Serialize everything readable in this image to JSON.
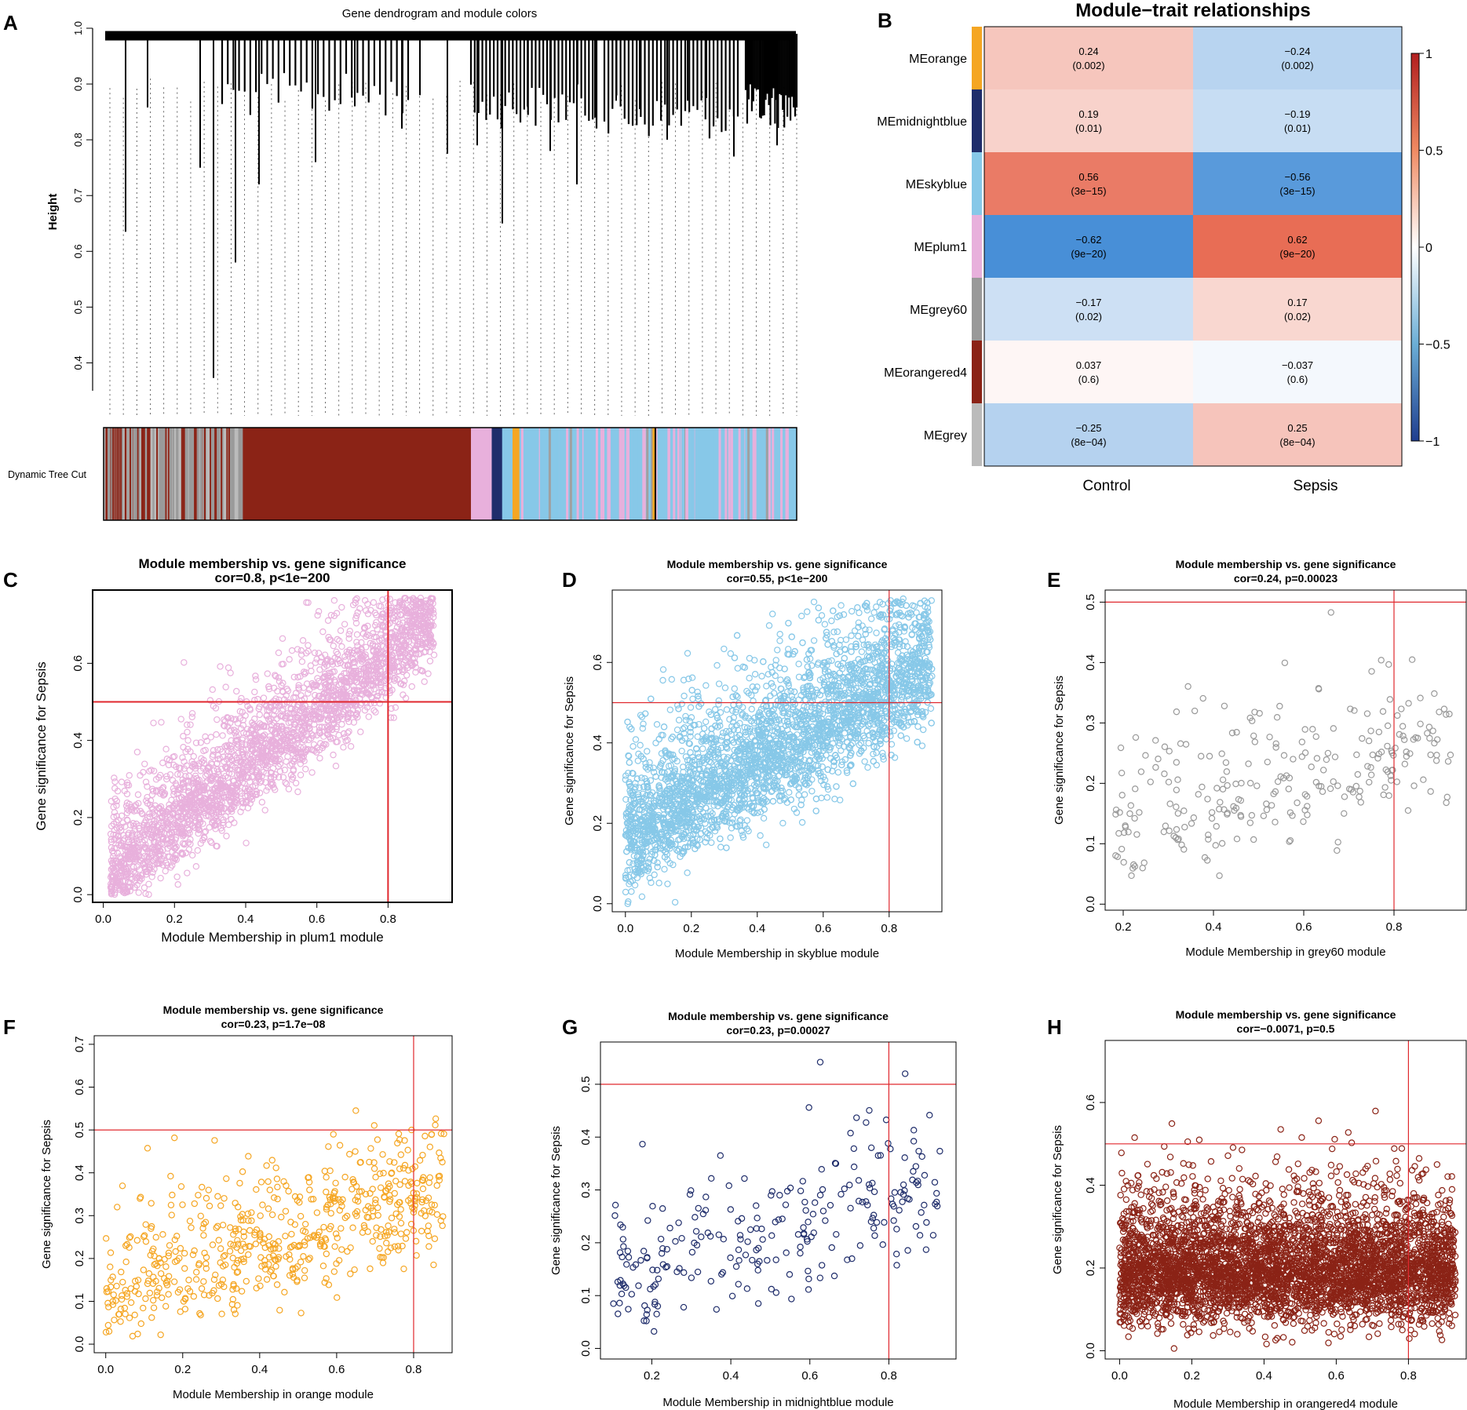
{
  "panel_letters": [
    "A",
    "B",
    "C",
    "D",
    "E",
    "F",
    "G",
    "H"
  ],
  "colors": {
    "orange": "#f5a623",
    "midnightblue": "#1f2d6b",
    "skyblue": "#87c8e8",
    "plum1": "#e8b0dc",
    "grey60": "#999999",
    "orangered4": "#8b2316",
    "grey": "#bbbbbb",
    "red_line": "#e0282e",
    "heat_pos": "#e4553a",
    "heat_neg": "#2a7dd1",
    "heat_mid": "#ffffff"
  },
  "chart_data": [
    {
      "panel": "A",
      "type": "dendrogram",
      "title": "Gene dendrogram and module colors",
      "ylabel": "Height",
      "ylim": [
        0.35,
        1.0
      ],
      "yticks": [
        "0.4",
        "0.5",
        "0.6",
        "0.7",
        "0.8",
        "0.9",
        "1.0"
      ],
      "color_bar_label": "Dynamic Tree Cut",
      "color_bar_segments": [
        {
          "module": "grey",
          "from": 0.0,
          "to": 0.2
        },
        {
          "module": "orangered4",
          "from": 0.2,
          "to": 0.53
        },
        {
          "module": "plum1",
          "from": 0.53,
          "to": 0.56
        },
        {
          "module": "midnightblue",
          "from": 0.56,
          "to": 0.575
        },
        {
          "module": "orange",
          "from": 0.59,
          "to": 0.6
        },
        {
          "module": "skyblue",
          "from": 0.6,
          "to": 1.0
        }
      ]
    },
    {
      "panel": "B",
      "type": "heatmap",
      "title": "Module−trait relationships",
      "columns": [
        "Control",
        "Sepsis"
      ],
      "rows": [
        "MEorange",
        "MEmidnightblue",
        "MEskyblue",
        "MEplum1",
        "MEgrey60",
        "MEorangered4",
        "MEgrey"
      ],
      "row_colors": [
        "orange",
        "midnightblue",
        "skyblue",
        "plum1",
        "grey60",
        "orangered4",
        "grey"
      ],
      "values": [
        [
          0.24,
          -0.24
        ],
        [
          0.19,
          -0.19
        ],
        [
          0.56,
          -0.56
        ],
        [
          -0.62,
          0.62
        ],
        [
          -0.17,
          0.17
        ],
        [
          0.037,
          -0.037
        ],
        [
          -0.25,
          0.25
        ]
      ],
      "value_labels": [
        [
          "0.24",
          "−0.24"
        ],
        [
          "0.19",
          "−0.19"
        ],
        [
          "0.56",
          "−0.56"
        ],
        [
          "−0.62",
          "0.62"
        ],
        [
          "−0.17",
          "0.17"
        ],
        [
          "0.037",
          "−0.037"
        ],
        [
          "−0.25",
          "0.25"
        ]
      ],
      "pvalues": [
        [
          "(0.002)",
          "(0.002)"
        ],
        [
          "(0.01)",
          "(0.01)"
        ],
        [
          "(3e−15)",
          "(3e−15)"
        ],
        [
          "(9e−20)",
          "(9e−20)"
        ],
        [
          "(0.02)",
          "(0.02)"
        ],
        [
          "(0.6)",
          "(0.6)"
        ],
        [
          "(8e−04)",
          "(8e−04)"
        ]
      ],
      "legend_range": [
        -1,
        1
      ],
      "legend_ticks": [
        "1",
        "0.5",
        "0",
        "−0.5",
        "−1"
      ]
    },
    {
      "panel": "C",
      "type": "scatter",
      "title": "Module membership vs. gene significance",
      "subtitle": "cor=0.8, p<1e−200",
      "xlabel": "Module Membership in plum1 module",
      "ylabel": "Gene significance for  Sepsis",
      "xlim": [
        -0.03,
        0.98
      ],
      "ylim": [
        -0.02,
        0.79
      ],
      "xticks": [
        0.0,
        0.2,
        0.4,
        0.6,
        0.8
      ],
      "yticks": [
        0.0,
        0.2,
        0.4,
        0.6
      ],
      "hline": 0.5,
      "vline": 0.8,
      "color": "plum1",
      "n_points": 2600,
      "trend": {
        "intercept": -0.02,
        "slope": 0.72,
        "sd": 0.12,
        "x_range": [
          0.02,
          0.93
        ]
      }
    },
    {
      "panel": "D",
      "type": "scatter",
      "title": "Module membership vs. gene significance",
      "subtitle": "cor=0.55, p<1e−200",
      "xlabel": "Module Membership in skyblue module",
      "ylabel": "Gene significance for  Sepsis",
      "xlim": [
        -0.04,
        0.96
      ],
      "ylim": [
        -0.02,
        0.78
      ],
      "xticks": [
        0.0,
        0.2,
        0.4,
        0.6,
        0.8
      ],
      "yticks": [
        0.0,
        0.2,
        0.4,
        0.6
      ],
      "hline": 0.5,
      "vline": 0.8,
      "color": "skyblue",
      "n_points": 3800,
      "trend": {
        "intercept": 0.1,
        "slope": 0.45,
        "sd": 0.14,
        "x_range": [
          0.0,
          0.93
        ]
      }
    },
    {
      "panel": "E",
      "type": "scatter",
      "title": "Module membership vs. gene significance",
      "subtitle": "cor=0.24, p=0.00023",
      "xlabel": "Module Membership in grey60 module",
      "ylabel": "Gene significance for  Sepsis",
      "xlim": [
        0.16,
        0.96
      ],
      "ylim": [
        -0.01,
        0.52
      ],
      "xticks": [
        0.2,
        0.4,
        0.6,
        0.8
      ],
      "yticks": [
        0.0,
        0.1,
        0.2,
        0.3,
        0.4,
        0.5
      ],
      "hline": 0.5,
      "vline": 0.8,
      "color": "grey60",
      "n_points": 260,
      "trend": {
        "intercept": 0.02,
        "slope": 0.22,
        "sd": 0.1,
        "x_range": [
          0.18,
          0.93
        ]
      }
    },
    {
      "panel": "F",
      "type": "scatter",
      "title": "Module membership vs. gene significance",
      "subtitle": "cor=0.23, p=1.7e−08",
      "xlabel": "Module Membership in orange module",
      "ylabel": "Gene significance for  Sepsis",
      "xlim": [
        -0.03,
        0.9
      ],
      "ylim": [
        -0.02,
        0.72
      ],
      "xticks": [
        0.0,
        0.2,
        0.4,
        0.6,
        0.8
      ],
      "yticks": [
        0.0,
        0.1,
        0.2,
        0.3,
        0.4,
        0.5,
        0.6,
        0.7
      ],
      "hline": 0.5,
      "vline": 0.8,
      "color": "orange",
      "n_points": 600,
      "trend": {
        "intercept": 0.06,
        "slope": 0.26,
        "sd": 0.12,
        "x_range": [
          0.0,
          0.88
        ]
      }
    },
    {
      "panel": "G",
      "type": "scatter",
      "title": "Module membership vs. gene significance",
      "subtitle": "cor=0.23, p=0.00027",
      "xlabel": "Module Membership in midnightblue module",
      "ylabel": "Gene significance for  Sepsis",
      "xlim": [
        0.07,
        0.97
      ],
      "ylim": [
        -0.02,
        0.58
      ],
      "xticks": [
        0.2,
        0.4,
        0.6,
        0.8
      ],
      "yticks": [
        0.0,
        0.1,
        0.2,
        0.3,
        0.4,
        0.5
      ],
      "hline": 0.5,
      "vline": 0.8,
      "color": "midnightblue",
      "n_points": 250,
      "trend": {
        "intercept": 0.04,
        "slope": 0.22,
        "sd": 0.11,
        "x_range": [
          0.1,
          0.93
        ]
      }
    },
    {
      "panel": "H",
      "type": "scatter",
      "title": "Module membership vs. gene significance",
      "subtitle": "cor=−0.0071, p=0.5",
      "xlabel": "Module Membership in orangered4 module",
      "ylabel": "Gene significance for  Sepsis",
      "xlim": [
        -0.04,
        0.96
      ],
      "ylim": [
        -0.02,
        0.75
      ],
      "xticks": [
        0.0,
        0.2,
        0.4,
        0.6,
        0.8
      ],
      "yticks": [
        0.0,
        0.2,
        0.4,
        0.6
      ],
      "hline": 0.5,
      "vline": 0.8,
      "color": "orangered4",
      "n_points": 4500,
      "trend": {
        "intercept": 0.13,
        "slope": 0.0,
        "sd": 0.12,
        "x_range": [
          0.0,
          0.93
        ]
      }
    }
  ]
}
